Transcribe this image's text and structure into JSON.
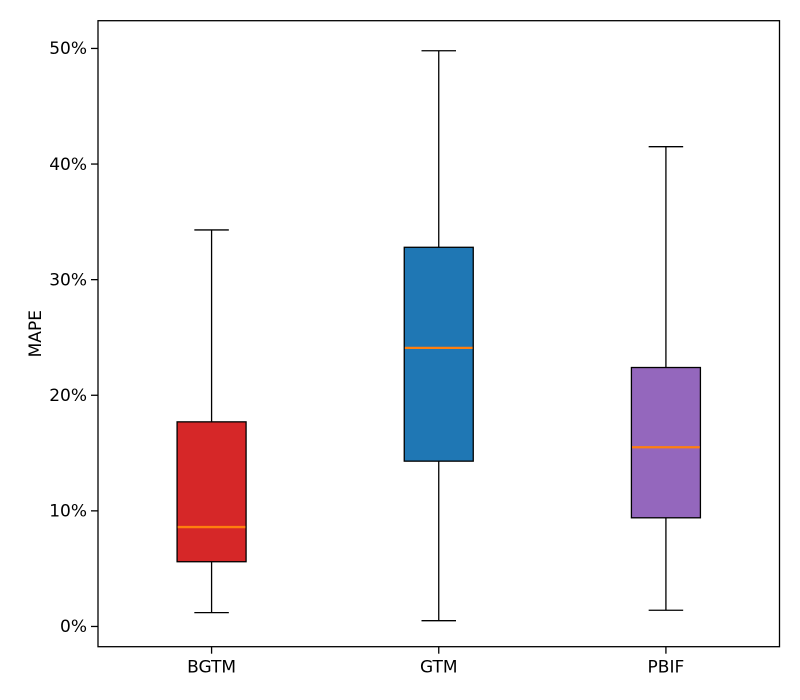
{
  "figure": {
    "background": "#ffffff",
    "frame_color": "#000000"
  },
  "chart_data": {
    "type": "boxplot",
    "title": "",
    "xlabel": "",
    "ylabel": "MAPE",
    "categories": [
      "BGTM",
      "GTM",
      "PBIF"
    ],
    "series": [
      {
        "name": "BGTM",
        "box_color": "#d62728",
        "whisker_low": 1.2,
        "q1": 5.6,
        "median": 8.6,
        "q3": 17.7,
        "whisker_high": 34.3
      },
      {
        "name": "GTM",
        "box_color": "#1f77b4",
        "whisker_low": 0.5,
        "q1": 14.3,
        "median": 24.1,
        "q3": 32.8,
        "whisker_high": 49.8
      },
      {
        "name": "PBIF",
        "box_color": "#9467bd",
        "whisker_low": 1.4,
        "q1": 9.4,
        "median": 15.5,
        "q3": 22.4,
        "whisker_high": 41.5
      }
    ],
    "median_color": "#ff7f0e",
    "edge_color": "#000000",
    "whisker_color": "#000000",
    "yticks": [
      {
        "value": 0,
        "label": "0%"
      },
      {
        "value": 10,
        "label": "10%"
      },
      {
        "value": 20,
        "label": "20%"
      },
      {
        "value": 30,
        "label": "30%"
      },
      {
        "value": 40,
        "label": "40%"
      },
      {
        "value": 50,
        "label": "50%"
      }
    ],
    "ylim": [
      -1.75,
      52.4
    ],
    "grid": false,
    "legend_position": "none"
  }
}
